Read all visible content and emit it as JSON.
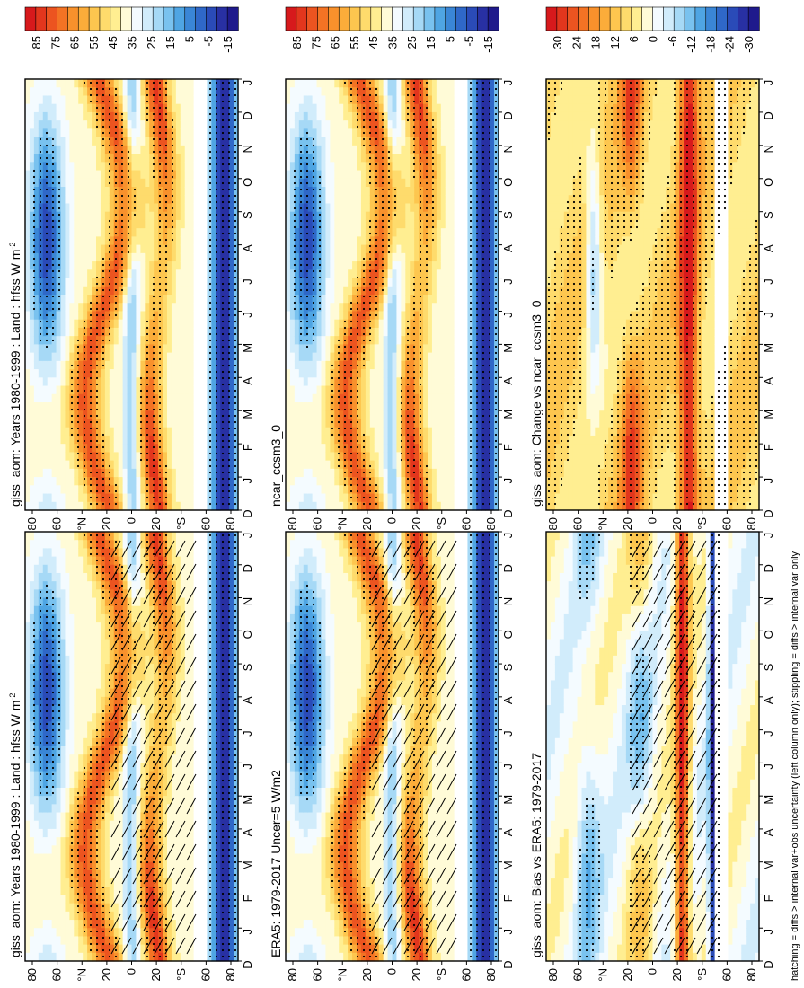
{
  "figure": {
    "footer_note": "hatching = diffs > internal var+obs uncertainty (left column only); stippling = diffs > internal var only"
  },
  "chart_data": [
    {
      "type": "heatmap",
      "title": "giss_aom: Years 1980-1999 : Land : hfss W m",
      "title_superscript": "-2",
      "x_labels": [
        "D",
        "J",
        "F",
        "M",
        "A",
        "M",
        "J",
        "J",
        "A",
        "S",
        "O",
        "N",
        "D",
        "J"
      ],
      "y_ticks": [
        "80",
        "60",
        "°N",
        "20",
        "0",
        "20",
        "°S",
        "60",
        "80"
      ],
      "lat_range": [
        -90,
        90
      ],
      "colorbar": [
        "85",
        "75",
        "65",
        "55",
        "45",
        "35",
        "25",
        "15",
        "5",
        "-5",
        "-15"
      ],
      "color_range": [
        -20,
        90
      ],
      "field": "mean",
      "hatching": true,
      "stippling": true
    },
    {
      "type": "heatmap",
      "title": "giss_aom: Years 1980-1999 : Land : hfss W m",
      "title_superscript": "-2",
      "x_labels": [
        "D",
        "J",
        "F",
        "M",
        "A",
        "M",
        "J",
        "J",
        "A",
        "S",
        "O",
        "N",
        "D",
        "J"
      ],
      "y_ticks": [
        "80",
        "60",
        "°N",
        "20",
        "0",
        "20",
        "°S",
        "60",
        "80"
      ],
      "lat_range": [
        -90,
        90
      ],
      "colorbar": [
        "85",
        "75",
        "65",
        "55",
        "45",
        "35",
        "25",
        "15",
        "5",
        "-5",
        "-15"
      ],
      "color_range": [
        -20,
        90
      ],
      "field": "mean",
      "hatching": false,
      "stippling": true
    },
    {
      "type": "heatmap",
      "title": "ERA5: 1979-2017 Uncer=5 W/m2",
      "x_labels": [
        "D",
        "J",
        "F",
        "M",
        "A",
        "M",
        "J",
        "J",
        "A",
        "S",
        "O",
        "N",
        "D",
        "J"
      ],
      "y_ticks": [
        "80",
        "60",
        "°N",
        "20",
        "0",
        "20",
        "°S",
        "60",
        "80"
      ],
      "lat_range": [
        -90,
        90
      ],
      "colorbar": [
        "85",
        "75",
        "65",
        "55",
        "45",
        "35",
        "25",
        "15",
        "5",
        "-5",
        "-15"
      ],
      "color_range": [
        -20,
        90
      ],
      "field": "mean",
      "hatching": true,
      "stippling": true
    },
    {
      "type": "heatmap",
      "title": "ncar_ccsm3_0",
      "x_labels": [
        "D",
        "J",
        "F",
        "M",
        "A",
        "M",
        "J",
        "J",
        "A",
        "S",
        "O",
        "N",
        "D",
        "J"
      ],
      "y_ticks": [
        "80",
        "60",
        "°N",
        "20",
        "0",
        "20",
        "°S",
        "60",
        "80"
      ],
      "lat_range": [
        -90,
        90
      ],
      "colorbar": [
        "85",
        "75",
        "65",
        "55",
        "45",
        "35",
        "25",
        "15",
        "5",
        "-5",
        "-15"
      ],
      "color_range": [
        -20,
        90
      ],
      "field": "mean",
      "hatching": false,
      "stippling": true
    },
    {
      "type": "heatmap",
      "title": "giss_aom: Bias vs ERA5: 1979-2017",
      "x_labels": [
        "D",
        "J",
        "F",
        "M",
        "A",
        "M",
        "J",
        "J",
        "A",
        "S",
        "O",
        "N",
        "D",
        "J"
      ],
      "y_ticks": [
        "80",
        "60",
        "°N",
        "20",
        "0",
        "20",
        "°S",
        "60",
        "80"
      ],
      "lat_range": [
        -90,
        90
      ],
      "colorbar": [
        "30",
        "24",
        "18",
        "12",
        "6",
        "0",
        "-6",
        "-12",
        "-18",
        "-24",
        "-30"
      ],
      "color_range": [
        -33,
        33
      ],
      "field": "bias",
      "hatching": true,
      "stippling": true
    },
    {
      "type": "heatmap",
      "title": "giss_aom: Change vs ncar_ccsm3_0",
      "x_labels": [
        "D",
        "J",
        "F",
        "M",
        "A",
        "M",
        "J",
        "J",
        "A",
        "S",
        "O",
        "N",
        "D",
        "J"
      ],
      "y_ticks": [
        "80",
        "60",
        "°N",
        "20",
        "0",
        "20",
        "°S",
        "60",
        "80"
      ],
      "lat_range": [
        -90,
        90
      ],
      "colorbar": [
        "30",
        "24",
        "18",
        "12",
        "6",
        "0",
        "-6",
        "-12",
        "-18",
        "-24",
        "-30"
      ],
      "color_range": [
        -33,
        33
      ],
      "field": "change",
      "hatching": false,
      "stippling": true
    }
  ]
}
